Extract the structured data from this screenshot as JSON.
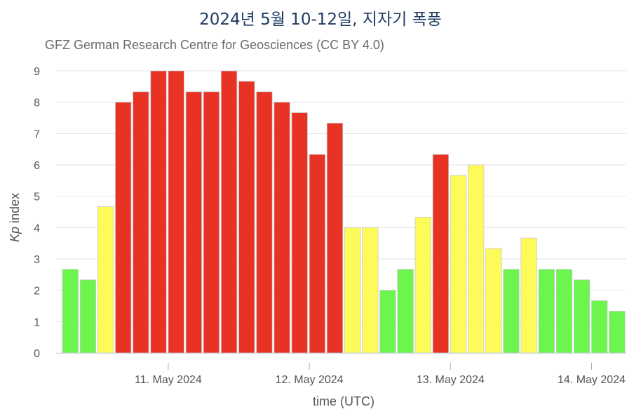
{
  "chart_data": {
    "type": "bar",
    "title": "2024년 5월 10-12일, 지자기 폭풍",
    "subtitle": "GFZ German Research Centre for Geosciences (CC BY 4.0)",
    "ylabel_italic": "Kp",
    "ylabel_rest": " index",
    "xlabel": "time (UTC)",
    "ylim": [
      0,
      9
    ],
    "yticks": [
      0,
      1,
      2,
      3,
      4,
      5,
      6,
      7,
      8,
      9
    ],
    "xticks": [
      {
        "index": 6,
        "label": "11. May 2024"
      },
      {
        "index": 14,
        "label": "12. May 2024"
      },
      {
        "index": 22,
        "label": "13. May 2024"
      },
      {
        "index": 30,
        "label": "14. May 2024"
      }
    ],
    "grid": true,
    "values": [
      2.667,
      2.333,
      4.667,
      8.0,
      8.333,
      9.0,
      9.0,
      8.333,
      8.333,
      9.0,
      8.667,
      8.333,
      8.0,
      7.667,
      6.333,
      7.333,
      4.0,
      4.0,
      2.0,
      2.667,
      4.333,
      6.333,
      5.667,
      6.0,
      3.333,
      2.667,
      3.667,
      2.667,
      2.667,
      2.333,
      1.667,
      1.333
    ],
    "colors": [
      "green",
      "green",
      "yellow",
      "red",
      "red",
      "red",
      "red",
      "red",
      "red",
      "red",
      "red",
      "red",
      "red",
      "red",
      "red",
      "red",
      "yellow",
      "yellow",
      "green",
      "green",
      "yellow",
      "red",
      "yellow",
      "yellow",
      "yellow",
      "green",
      "yellow",
      "green",
      "green",
      "green",
      "green",
      "green"
    ],
    "palette": {
      "green": "#6cf54d",
      "yellow": "#fdfb5a",
      "red": "#e83224"
    }
  }
}
